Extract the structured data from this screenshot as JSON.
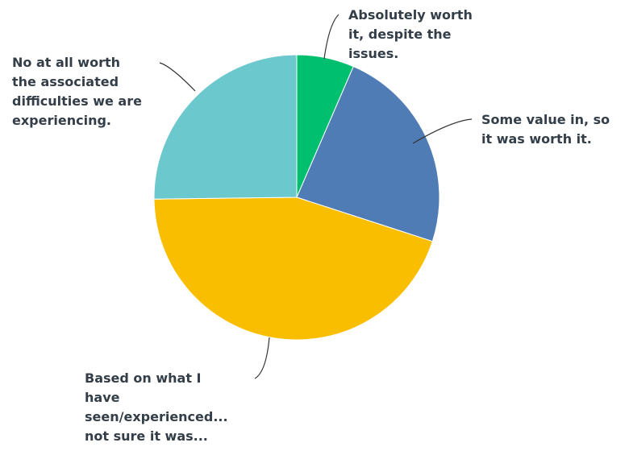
{
  "chart_data": {
    "type": "pie",
    "categories": [
      "Absolutely worth it, despite the issues.",
      "Some value in, so it was worth it.",
      "Based on what I have seen/experienced... not sure it was...",
      "No at all worth the associated difficulties we are experiencing."
    ],
    "values": [
      6.5,
      23.5,
      44.8,
      25.2
    ],
    "label_lines": [
      [
        "Absolutely worth",
        "it, despite the",
        "issues."
      ],
      [
        "Some value in, so",
        "it was worth it."
      ],
      [
        "Based on what I",
        "have",
        "seen/experienced...",
        "not sure it was..."
      ],
      [
        "No at all worth",
        "the associated",
        "difficulties we are",
        "experiencing."
      ]
    ],
    "colors": [
      "#00bf6f",
      "#507cb6",
      "#f9be00",
      "#6bc8cd"
    ],
    "legend": "none",
    "title": ""
  }
}
